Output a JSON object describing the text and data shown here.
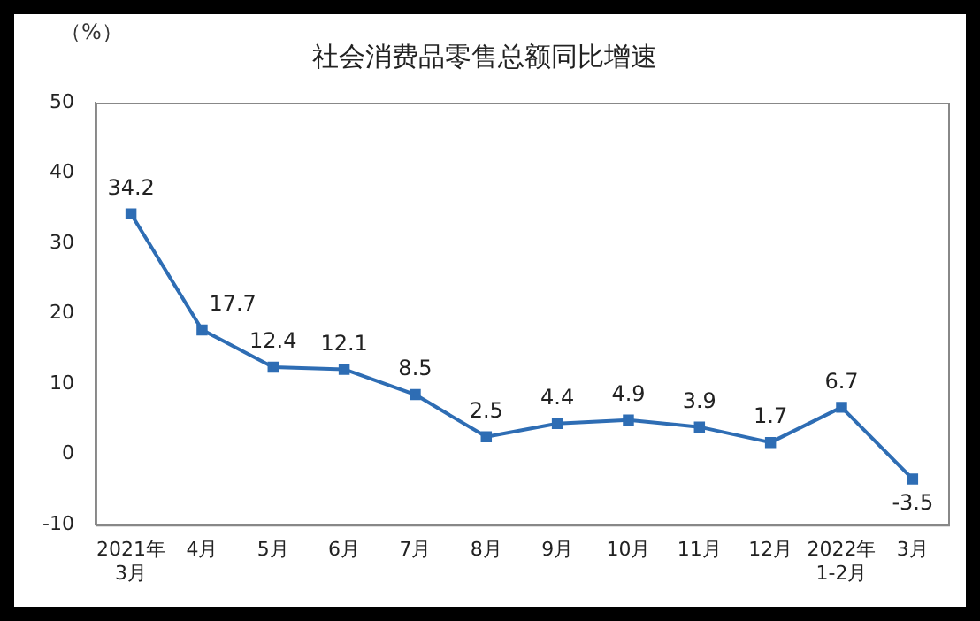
{
  "chart_data": {
    "type": "line",
    "title": "社会消费品零售总额同比增速",
    "ylabel": "（%）",
    "categories": [
      "2021年\n3月",
      "4月",
      "5月",
      "6月",
      "7月",
      "8月",
      "9月",
      "10月",
      "11月",
      "12月",
      "2022年\n1-2月",
      "3月"
    ],
    "series": [
      {
        "color": "#2e6db4",
        "values": [
          34.2,
          17.7,
          12.4,
          12.1,
          8.5,
          2.5,
          4.4,
          4.9,
          3.9,
          1.7,
          6.7,
          -3.5
        ]
      }
    ],
    "ylim": [
      -10,
      50
    ],
    "yticks": [
      -10,
      0,
      10,
      20,
      30,
      40,
      50
    ],
    "grid": false,
    "legend": false,
    "marker": "square",
    "line_style": "solid",
    "data_labels": true
  }
}
